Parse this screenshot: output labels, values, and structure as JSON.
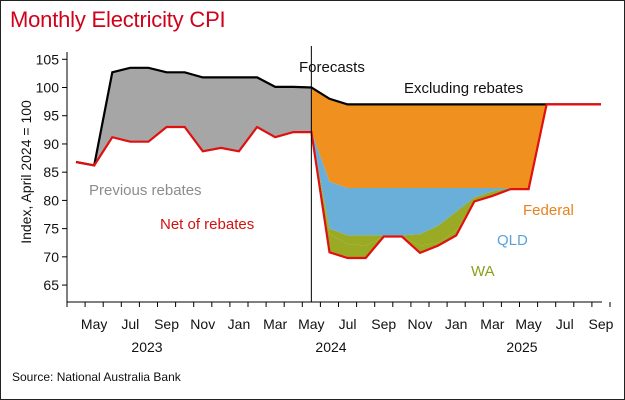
{
  "chart_data": {
    "type": "area",
    "title": "Monthly Electricity CPI",
    "ylabel": "Index, April 2024 = 100",
    "xlabel": "",
    "ylim": [
      62,
      107
    ],
    "yticks": [
      65,
      70,
      75,
      80,
      85,
      90,
      95,
      100,
      105
    ],
    "month_ticks": [
      "May",
      "Jul",
      "Sep",
      "Nov",
      "Jan",
      "Mar",
      "May",
      "Jul",
      "Sep",
      "Nov",
      "Jan",
      "Mar",
      "May",
      "Jul",
      "Sep"
    ],
    "year_labels": [
      "2023",
      "2024",
      "2025"
    ],
    "forecast_start": "2024-05",
    "grid": false,
    "x": [
      "2023-04",
      "2023-05",
      "2023-06",
      "2023-07",
      "2023-08",
      "2023-09",
      "2023-10",
      "2023-11",
      "2023-12",
      "2024-01",
      "2024-02",
      "2024-03",
      "2024-04",
      "2024-05",
      "2024-06",
      "2024-07",
      "2024-08",
      "2024-09",
      "2024-10",
      "2024-11",
      "2024-12",
      "2025-01",
      "2025-02",
      "2025-03",
      "2025-04",
      "2025-05",
      "2025-06",
      "2025-07",
      "2025-08",
      "2025-09"
    ],
    "series": [
      {
        "name": "Excluding rebates",
        "color": "#000000",
        "values": [
          86.8,
          86.2,
          102.7,
          103.5,
          103.5,
          102.7,
          102.7,
          101.8,
          101.8,
          101.8,
          101.8,
          100.1,
          100.1,
          100.0,
          98.0,
          97.0,
          97.0,
          97.0,
          97.0,
          97.0,
          97.0,
          97.0,
          97.0,
          97.0,
          97.0,
          97.0,
          97.0,
          97.0,
          97.0,
          97.0
        ]
      },
      {
        "name": "Federal",
        "color": "#f0901e",
        "values": [
          null,
          null,
          null,
          null,
          null,
          null,
          null,
          null,
          null,
          null,
          null,
          null,
          null,
          92.2,
          83.3,
          82.2,
          82.2,
          82.2,
          82.2,
          82.2,
          82.2,
          82.2,
          82.2,
          82.2,
          82.2,
          82.2,
          97.0,
          null,
          null,
          null
        ]
      },
      {
        "name": "QLD",
        "color": "#6aafd9",
        "values": [
          null,
          null,
          null,
          null,
          null,
          null,
          null,
          null,
          null,
          null,
          null,
          null,
          null,
          92.2,
          75.0,
          73.8,
          73.8,
          73.8,
          73.8,
          74.0,
          75.5,
          78.0,
          80.5,
          81.6,
          82.2,
          82.2,
          97.0,
          null,
          null,
          null
        ]
      },
      {
        "name": "WA",
        "color": "#9aaa24",
        "values": [
          null,
          null,
          null,
          null,
          null,
          null,
          null,
          null,
          null,
          null,
          null,
          null,
          null,
          92.2,
          74.0,
          72.3,
          72.0,
          73.6,
          73.6,
          72.0,
          72.5,
          74.6,
          79.8,
          80.8,
          82.0,
          82.0,
          97.0,
          null,
          null,
          null
        ]
      },
      {
        "name": "Net of rebates",
        "color": "#e01010",
        "values": [
          86.8,
          86.2,
          91.2,
          90.4,
          90.4,
          93.0,
          93.0,
          88.7,
          89.3,
          88.7,
          93.0,
          91.2,
          92.1,
          92.1,
          70.8,
          69.8,
          69.8,
          73.6,
          73.6,
          70.7,
          72.0,
          73.8,
          79.8,
          80.8,
          82.0,
          82.0,
          97.0,
          97.0,
          97.0,
          97.0
        ]
      }
    ],
    "shaded_region": {
      "name": "Previous rebates",
      "color": "#a6a6a6"
    },
    "annotations": {
      "forecasts": "Forecasts",
      "excluding_rebates": "Excluding rebates",
      "previous_rebates": "Previous rebates",
      "net_of_rebates": "Net of rebates",
      "federal": "Federal",
      "qld": "QLD",
      "wa": "WA"
    },
    "source": "Source: National Australia Bank"
  }
}
